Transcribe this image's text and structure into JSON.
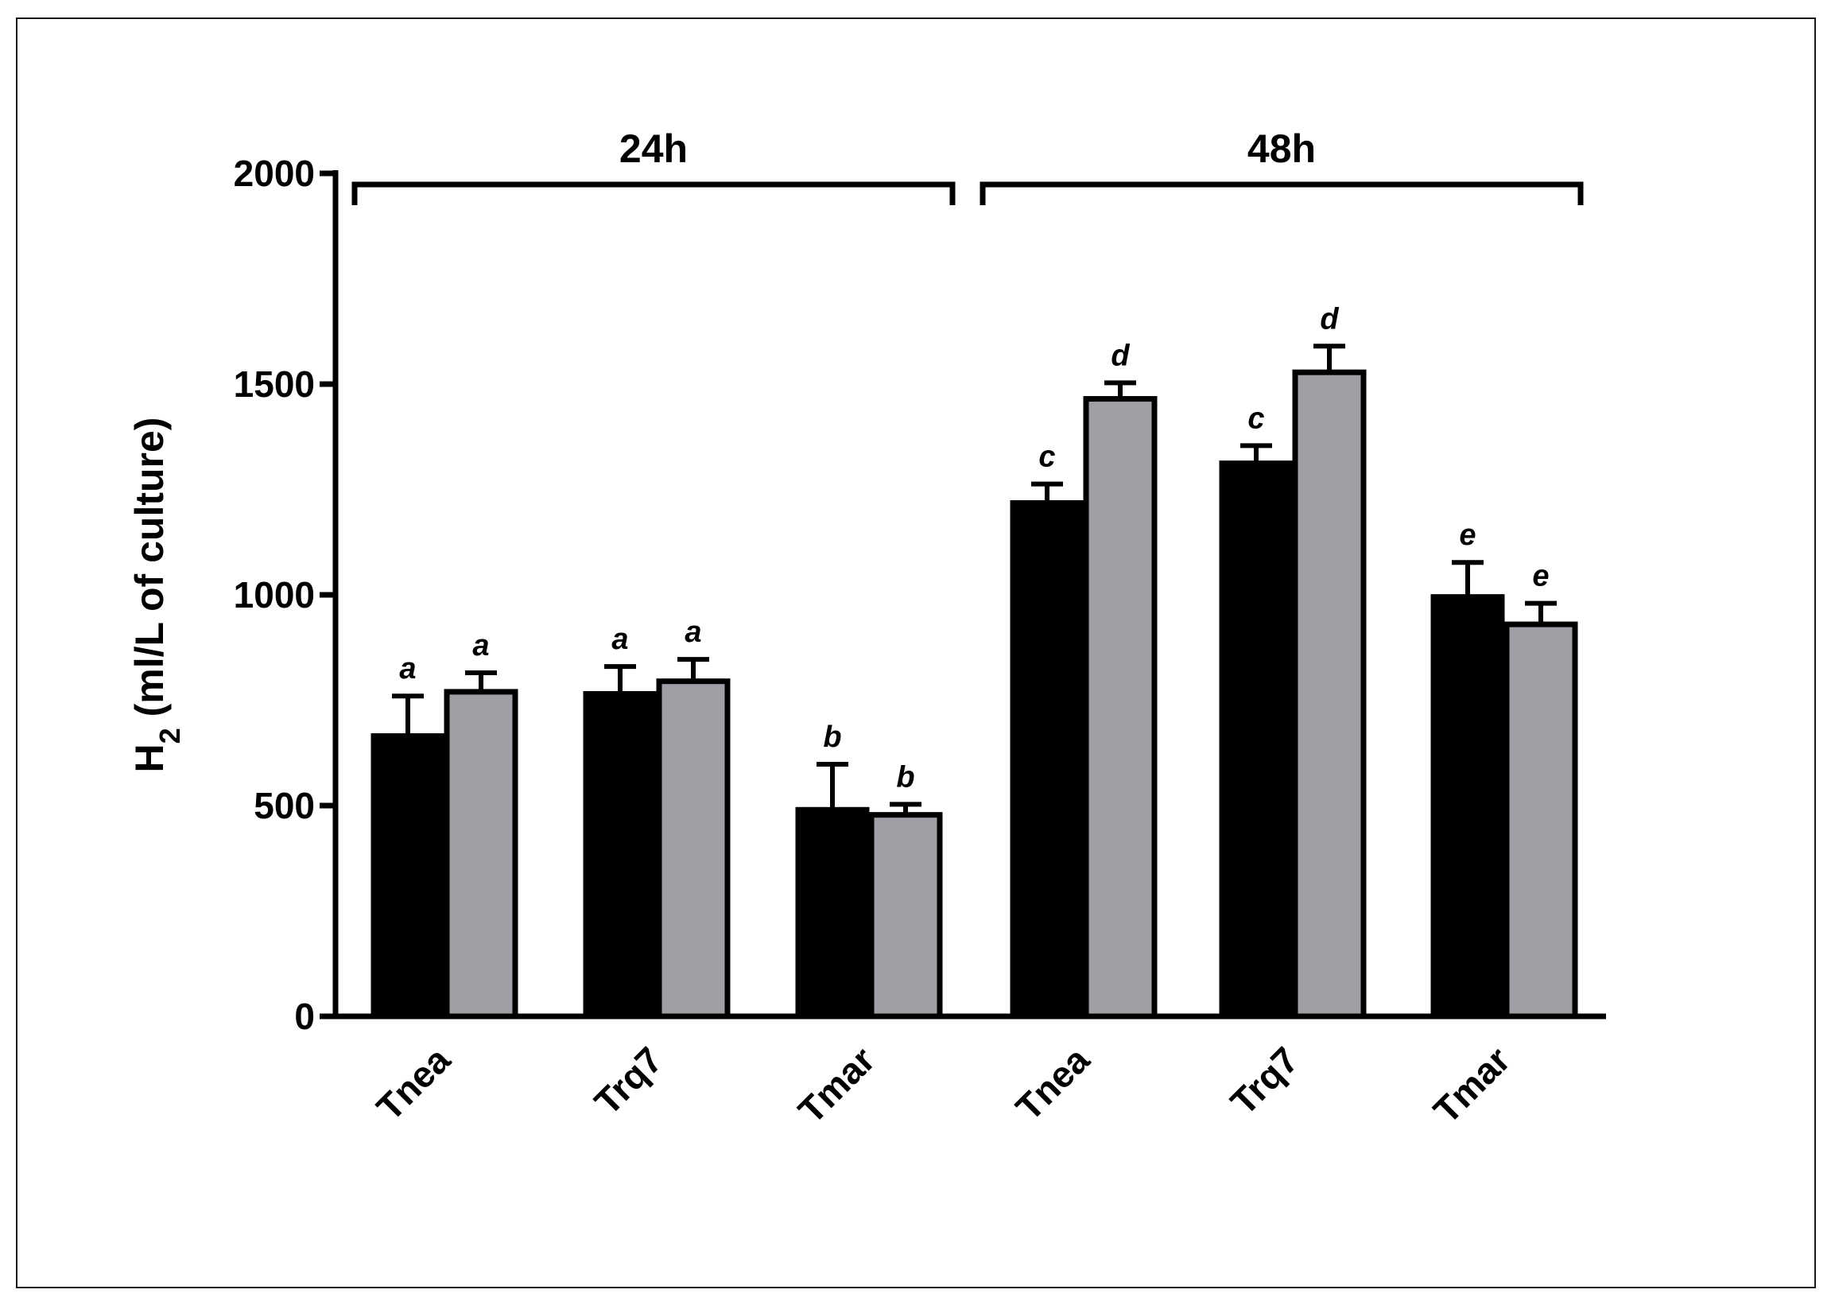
{
  "chart_data": {
    "type": "bar",
    "title": "",
    "xlabel": "",
    "ylabel": "H2 (ml/L of culture)",
    "ylabel_parts": {
      "base": "H",
      "subscript": "2",
      "rest": " (ml/L of culture)"
    },
    "ylim": [
      0,
      2000
    ],
    "yticks": [
      "0",
      "500",
      "1000",
      "1500",
      "2000"
    ],
    "grid": false,
    "legend": "none",
    "groups": [
      {
        "label": "24h",
        "categories": [
          "Tnea",
          "Trq7",
          "Tmar"
        ],
        "series": [
          {
            "name": "black",
            "color": "#000000",
            "values": [
              665,
              765,
              490
            ],
            "errors": [
              95,
              65,
              108
            ],
            "letters": [
              "a",
              "a",
              "b"
            ]
          },
          {
            "name": "gray",
            "color": "#a09fa5",
            "values": [
              770,
              795,
              478
            ],
            "errors": [
              45,
              52,
              25
            ],
            "letters": [
              "a",
              "a",
              "b"
            ]
          }
        ]
      },
      {
        "label": "48h",
        "categories": [
          "Tnea",
          "Trq7",
          "Tmar"
        ],
        "series": [
          {
            "name": "black",
            "color": "#000000",
            "values": [
              1218,
              1312,
              995
            ],
            "errors": [
              45,
              42,
              82
            ],
            "letters": [
              "c",
              "c",
              "e"
            ]
          },
          {
            "name": "gray",
            "color": "#a09fa5",
            "values": [
              1465,
              1528,
              930
            ],
            "errors": [
              38,
              62,
              50
            ],
            "letters": [
              "d",
              "d",
              "e"
            ]
          }
        ]
      }
    ]
  }
}
